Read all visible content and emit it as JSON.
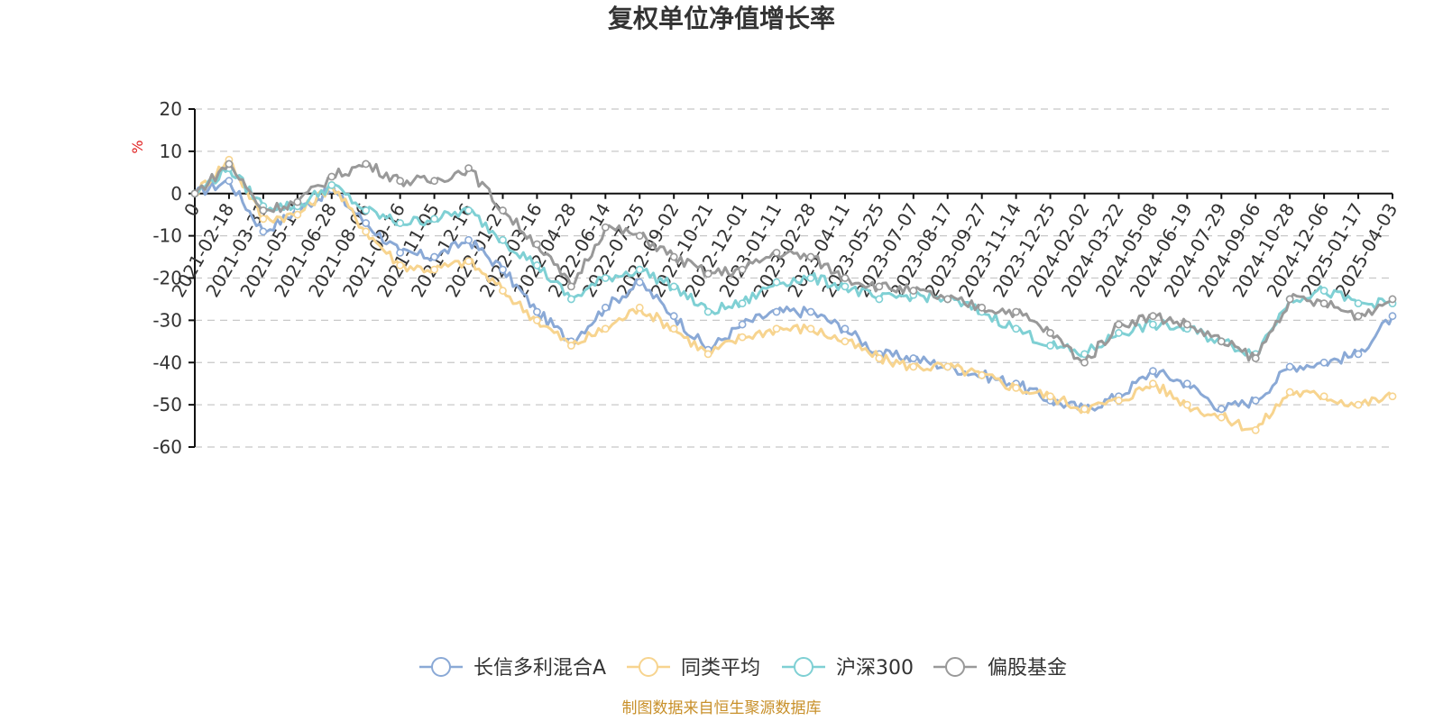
{
  "chart_data": {
    "type": "line",
    "title": "复权单位净值增长率",
    "ylabel": "%",
    "ylim": [
      -60,
      20
    ],
    "yticks": [
      20,
      10,
      0,
      -10,
      -20,
      -30,
      -40,
      -50,
      -60
    ],
    "grid": true,
    "legend_position": "bottom",
    "categories": [
      "0",
      "2021-02-18",
      "2021-03-31",
      "2021-05-17",
      "2021-06-28",
      "2021-08-06",
      "2021-09-16",
      "2021-11-05",
      "2021-12-16",
      "2022-01-27",
      "2022-03-16",
      "2022-04-28",
      "2022-06-14",
      "2022-07-25",
      "2022-09-02",
      "2022-10-21",
      "2022-12-01",
      "2023-01-11",
      "2023-02-28",
      "2023-04-11",
      "2023-05-25",
      "2023-07-07",
      "2023-08-17",
      "2023-09-27",
      "2023-11-14",
      "2023-12-25",
      "2024-02-02",
      "2024-03-22",
      "2024-05-08",
      "2024-06-19",
      "2024-07-29",
      "2024-09-06",
      "2024-10-28",
      "2024-12-06",
      "2025-01-17",
      "2025-04-03"
    ],
    "series": [
      {
        "name": "长信多利混合A",
        "color": "#8aa9d6",
        "values": [
          0,
          3,
          -9,
          -4,
          1,
          -7,
          -14,
          -15,
          -11,
          -18,
          -28,
          -35,
          -27,
          -21,
          -29,
          -37,
          -31,
          -28,
          -28,
          -32,
          -38,
          -39,
          -41,
          -43,
          -45,
          -49,
          -51,
          -48,
          -42,
          -45,
          -51,
          -49,
          -41,
          -40,
          -38,
          -29
        ]
      },
      {
        "name": "同类平均",
        "color": "#f7d48f",
        "values": [
          0,
          8,
          -6,
          -5,
          2,
          -9,
          -17,
          -18,
          -16,
          -23,
          -30,
          -36,
          -32,
          -27,
          -32,
          -38,
          -34,
          -32,
          -32,
          -35,
          -39,
          -41,
          -41,
          -43,
          -46,
          -48,
          -51,
          -49,
          -45,
          -50,
          -53,
          -56,
          -47,
          -48,
          -50,
          -48
        ]
      },
      {
        "name": "沪深300",
        "color": "#7fd0d4",
        "values": [
          0,
          6,
          -3,
          -3,
          2,
          -4,
          -7,
          -6,
          -4,
          -11,
          -17,
          -25,
          -20,
          -18,
          -22,
          -28,
          -26,
          -21,
          -20,
          -22,
          -25,
          -24,
          -25,
          -28,
          -32,
          -36,
          -38,
          -33,
          -31,
          -32,
          -35,
          -38,
          -25,
          -23,
          -26,
          -26
        ]
      },
      {
        "name": "偏股基金",
        "color": "#999999",
        "values": [
          0,
          7,
          -4,
          -2,
          4,
          7,
          3,
          3,
          6,
          -4,
          -12,
          -22,
          -8,
          -10,
          -15,
          -19,
          -18,
          -14,
          -15,
          -20,
          -22,
          -23,
          -25,
          -27,
          -28,
          -33,
          -40,
          -31,
          -29,
          -31,
          -35,
          -39,
          -25,
          -26,
          -29,
          -25
        ]
      }
    ]
  },
  "source_note": "制图数据来自恒生聚源数据库"
}
